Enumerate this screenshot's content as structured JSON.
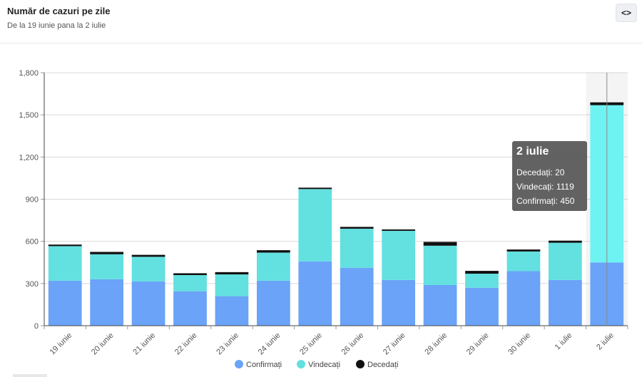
{
  "header": {
    "title": "Număr de cazuri pe zile",
    "subtitle": "De la 19 iunie pana la 2 iulie",
    "toggle_label": "<>"
  },
  "chart_data": {
    "type": "bar",
    "stacked": true,
    "title": "Număr de cazuri pe zile",
    "subtitle": "De la 19 iunie pana la 2 iulie",
    "categories": [
      "19 iunie",
      "20 iunie",
      "21 iunie",
      "22 iunie",
      "23 iunie",
      "24 iunie",
      "25 iunie",
      "26 iunie",
      "27 iunie",
      "28 iunie",
      "29 iunie",
      "30 iunie",
      "1 iulie",
      "2 iulie"
    ],
    "series": [
      {
        "name": "Confirmați",
        "color": "#6aa3f8",
        "values": [
          320,
          330,
          315,
          245,
          210,
          320,
          457,
          412,
          325,
          289,
          270,
          388,
          325,
          450
        ]
      },
      {
        "name": "Vindecați",
        "color": "#63e0e0",
        "highlight_color": "#6ef2f2",
        "values": [
          246,
          178,
          175,
          115,
          155,
          200,
          515,
          278,
          350,
          280,
          100,
          140,
          265,
          1119
        ]
      },
      {
        "name": "Decedați",
        "color": "#111111",
        "values": [
          11,
          17,
          14,
          13,
          16,
          17,
          10,
          13,
          10,
          27,
          20,
          14,
          15,
          20
        ]
      }
    ],
    "y_ticks": [
      "0",
      "300",
      "600",
      "900",
      "1,200",
      "1,500",
      "1,800"
    ],
    "ylim": [
      0,
      1800
    ],
    "xlabel": "",
    "ylabel": "",
    "grid": true,
    "legend": "bottom-center",
    "highlighted_index": 13
  },
  "tooltip": {
    "title": "2 iulie",
    "rows": [
      {
        "label": "Decedați",
        "value": "20"
      },
      {
        "label": "Vindecați",
        "value": "1119"
      },
      {
        "label": "Confirmați",
        "value": "450"
      }
    ]
  }
}
